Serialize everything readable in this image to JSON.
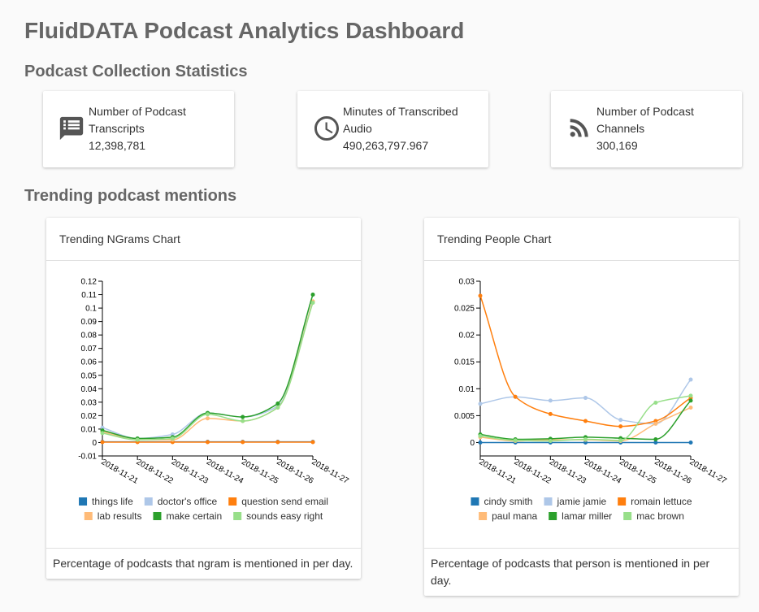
{
  "header": {
    "title": "FluidDATA Podcast Analytics Dashboard"
  },
  "sections": {
    "stats_title": "Podcast Collection Statistics",
    "trending_title": "Trending podcast mentions"
  },
  "stats": [
    {
      "label": "Number of Podcast Transcripts",
      "value": "12,398,781"
    },
    {
      "label": "Minutes of Transcribed Audio",
      "value": "490,263,797.967"
    },
    {
      "label": "Number of Podcast Channels",
      "value": "300,169"
    }
  ],
  "chart_data": [
    {
      "type": "line",
      "title": "Trending NGrams Chart",
      "caption": "Percentage of podcasts that ngram is mentioned in per day.",
      "categories": [
        "2018-11-21",
        "2018-11-22",
        "2018-11-23",
        "2018-11-24",
        "2018-11-25",
        "2018-11-26",
        "2018-11-27"
      ],
      "ylim": [
        -0.01,
        0.12
      ],
      "yticks": [
        -0.01,
        0,
        0.01,
        0.02,
        0.03,
        0.04,
        0.05,
        0.06,
        0.07,
        0.08,
        0.09,
        0.1,
        0.11,
        0.12
      ],
      "series": [
        {
          "name": "things life",
          "color": "#1f77b4",
          "values": [
            0.0005,
            0.0005,
            0.0005,
            0.0005,
            0.0005,
            0.0005,
            0.0005
          ]
        },
        {
          "name": "doctor's office",
          "color": "#aec7e8",
          "values": [
            0.011,
            0.003,
            0.006,
            0.022,
            0.019,
            0.027,
            0.11
          ]
        },
        {
          "name": "question send email",
          "color": "#ff7f0e",
          "values": [
            0.0003,
            0.0003,
            0.0003,
            0.0003,
            0.0003,
            0.0003,
            0.0003
          ]
        },
        {
          "name": "lab results",
          "color": "#ffbb78",
          "values": [
            0.008,
            0.002,
            0.002,
            0.018,
            0.016,
            0.026,
            0.105
          ]
        },
        {
          "name": "make certain",
          "color": "#2ca02c",
          "values": [
            0.009,
            0.003,
            0.004,
            0.022,
            0.019,
            0.029,
            0.11
          ]
        },
        {
          "name": "sounds easy right",
          "color": "#98df8a",
          "values": [
            0.007,
            0.002,
            0.003,
            0.021,
            0.016,
            0.026,
            0.104
          ]
        }
      ]
    },
    {
      "type": "line",
      "title": "Trending People Chart",
      "caption": "Percentage of podcasts that person is mentioned in per day.",
      "categories": [
        "2018-11-21",
        "2018-11-22",
        "2018-11-23",
        "2018-11-24",
        "2018-11-25",
        "2018-11-26",
        "2018-11-27"
      ],
      "ylim": [
        -0.0025,
        0.03
      ],
      "yticks": [
        0,
        0.005,
        0.01,
        0.015,
        0.02,
        0.025,
        0.03
      ],
      "series": [
        {
          "name": "cindy smith",
          "color": "#1f77b4",
          "values": [
            0,
            0,
            0,
            0,
            0,
            0,
            0
          ]
        },
        {
          "name": "jamie jamie",
          "color": "#aec7e8",
          "values": [
            0.0072,
            0.0085,
            0.0078,
            0.0083,
            0.0042,
            0.0035,
            0.0117
          ]
        },
        {
          "name": "romain lettuce",
          "color": "#ff7f0e",
          "values": [
            0.0273,
            0.0085,
            0.0053,
            0.004,
            0.003,
            0.004,
            0.0083
          ]
        },
        {
          "name": "paul mana",
          "color": "#ffbb78",
          "values": [
            0.001,
            0.0003,
            0.0005,
            0.0005,
            0.0003,
            0.0035,
            0.0065
          ]
        },
        {
          "name": "lamar miller",
          "color": "#2ca02c",
          "values": [
            0.0015,
            0.0006,
            0.0007,
            0.001,
            0.0008,
            0.0006,
            0.0078
          ]
        },
        {
          "name": "mac brown",
          "color": "#98df8a",
          "values": [
            0.0012,
            0.0004,
            0.0003,
            0.0006,
            0.0004,
            0.0074,
            0.0087
          ]
        }
      ]
    }
  ]
}
